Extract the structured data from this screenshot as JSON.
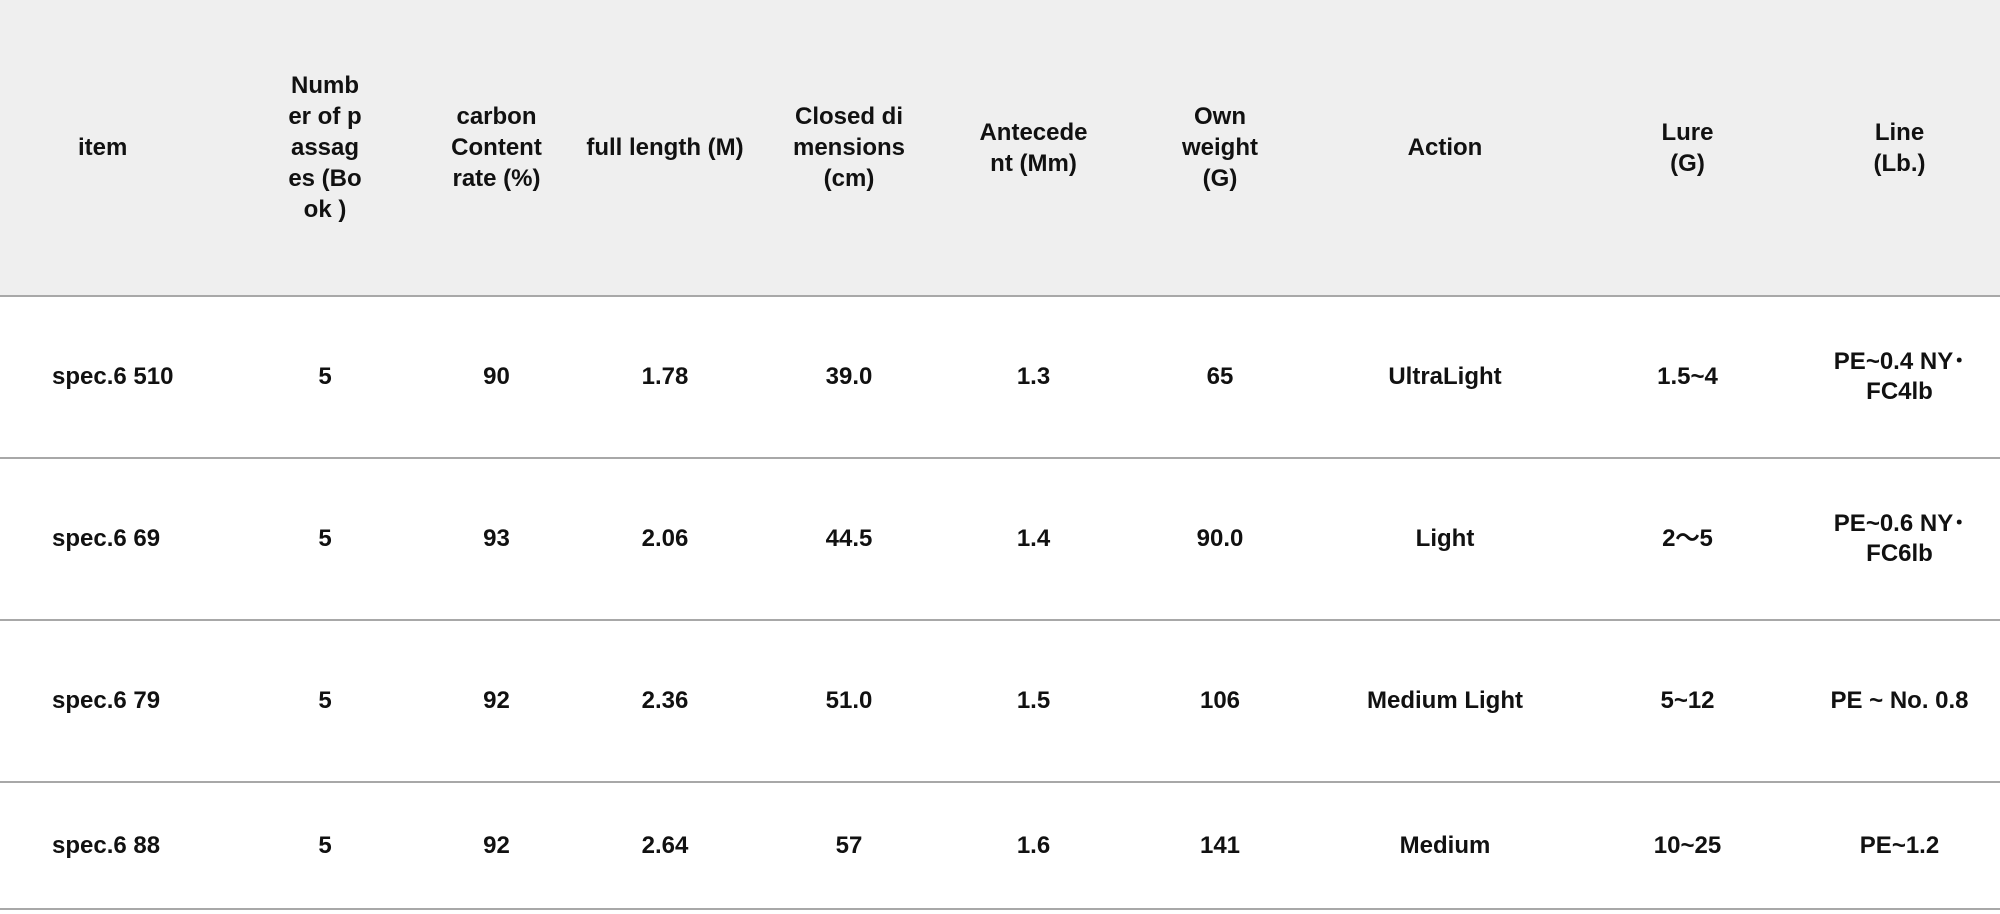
{
  "table": {
    "headers": [
      "item",
      "Number of passages (Book )",
      "carbon Content rate (%)",
      "full length (M)",
      "Closed dimensions (cm)",
      "Antecedent (Mm)",
      "Own weight (G)",
      "Action",
      "Lure (G)",
      "Line (Lb.)"
    ],
    "rows": [
      [
        "spec.6 510",
        "5",
        "90",
        "1.78",
        "39.0",
        "1.3",
        "65",
        "UltraLight",
        "1.5~4",
        "PE~0.4 NY･FC4lb"
      ],
      [
        "spec.6 69",
        "5",
        "93",
        "2.06",
        "44.5",
        "1.4",
        "90.0",
        "Light",
        "2〜5",
        "PE~0.6 NY･FC6lb"
      ],
      [
        "spec.6 79",
        "5",
        "92",
        "2.36",
        "51.0",
        "1.5",
        "106",
        "Medium Light",
        "5~12",
        "PE ~ No. 0.8"
      ],
      [
        "spec.6 88",
        "5",
        "92",
        "2.64",
        "57",
        "1.6",
        "141",
        "Medium",
        "10~25",
        "PE~1.2"
      ]
    ]
  },
  "colors": {
    "header_bg": "#efefef",
    "rule": "#a8a8a8",
    "text": "#111111"
  }
}
